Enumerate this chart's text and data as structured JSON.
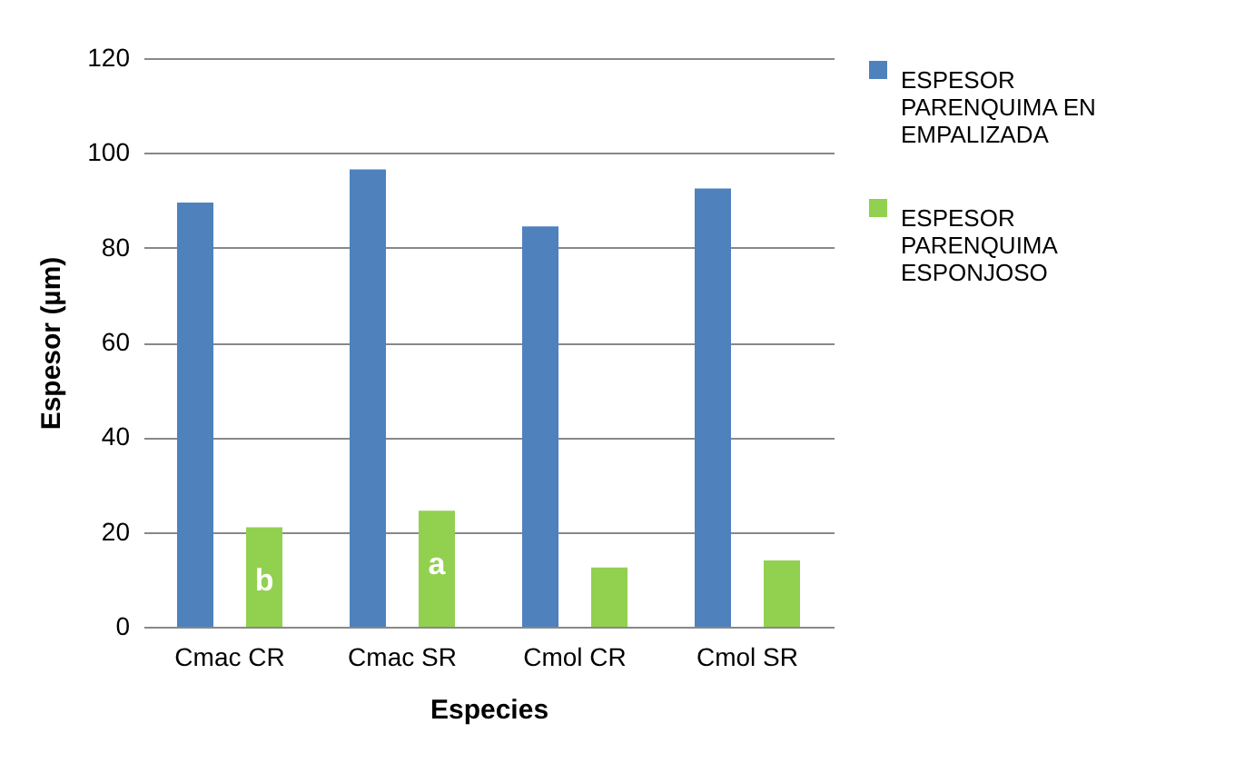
{
  "chart_data": {
    "type": "bar",
    "xlabel": "Especies",
    "ylabel": "Espesor (µm)",
    "categories": [
      "Cmac CR",
      "Cmac SR",
      "Cmol CR",
      "Cmol SR"
    ],
    "series": [
      {
        "name": "ESPESOR PARENQUIMA EN EMPALIZADA",
        "color": "#4f81bd",
        "values": [
          89.5,
          96.5,
          84.5,
          92.5
        ]
      },
      {
        "name": "ESPESOR PARENQUIMA ESPONJOSO",
        "color": "#92d050",
        "values": [
          21,
          24.5,
          12.5,
          14
        ]
      }
    ],
    "ylim": [
      0,
      120
    ],
    "yticks": [
      0,
      20,
      40,
      60,
      80,
      100,
      120
    ],
    "grid": "y",
    "legend": "right",
    "annotations": [
      "b",
      "a"
    ]
  }
}
